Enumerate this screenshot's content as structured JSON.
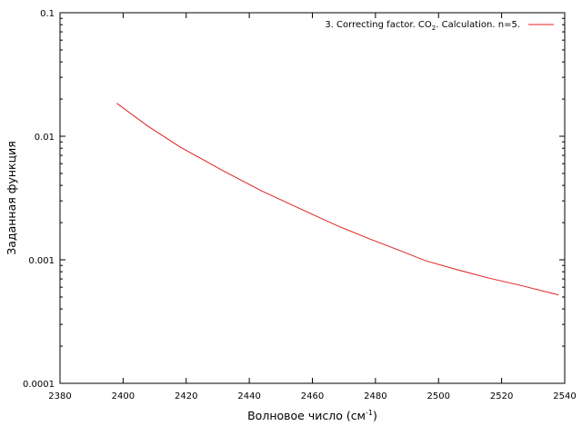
{
  "chart_data": {
    "type": "line",
    "xlabel": "Волновое число (см",
    "xlabel_sup": "-1",
    "xlabel_end": ")",
    "ylabel": "Заданная функция",
    "xlim": [
      2380,
      2540
    ],
    "ylim": [
      0.0001,
      0.1
    ],
    "yscale": "log",
    "x_ticks": [
      2380,
      2400,
      2420,
      2440,
      2460,
      2480,
      2500,
      2520,
      2540
    ],
    "y_ticks": [
      {
        "value": 0.0001,
        "label": "0.0001"
      },
      {
        "value": 0.001,
        "label": "0.001"
      },
      {
        "value": 0.01,
        "label": "0.01"
      },
      {
        "value": 0.1,
        "label": "0.1"
      }
    ],
    "legend_position": "top-right",
    "grid": false,
    "series": [
      {
        "name": "3. Correcting factor. CO2. Calculation. n=5.",
        "name_parts": [
          "3. Correcting factor. CO",
          "2",
          ". Calculation. n=5."
        ],
        "color": "#e0201c",
        "x": [
          2398,
          2408,
          2418,
          2432,
          2444,
          2456,
          2468,
          2478,
          2488,
          2496,
          2506,
          2516,
          2526,
          2538
        ],
        "y": [
          0.0185,
          0.012,
          0.0082,
          0.0052,
          0.0036,
          0.0026,
          0.00188,
          0.00148,
          0.00118,
          0.00098,
          0.00083,
          0.00071,
          0.00062,
          0.00052
        ]
      }
    ]
  }
}
